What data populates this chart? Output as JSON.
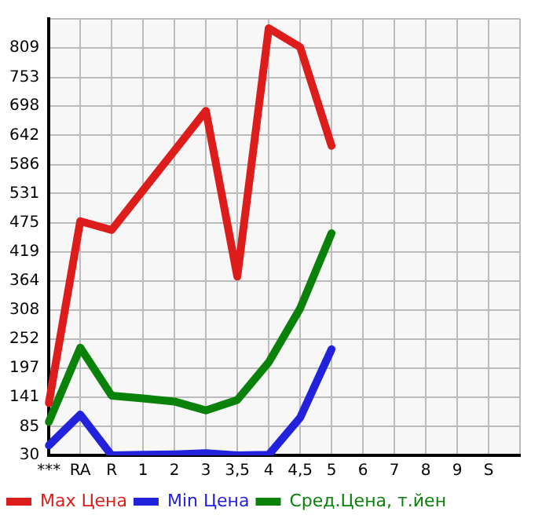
{
  "chart_data": {
    "type": "line",
    "categories": [
      "***",
      "RA",
      "R",
      "1",
      "2",
      "3",
      "3,5",
      "4",
      "4,5",
      "5",
      "6",
      "7",
      "8",
      "9",
      "S",
      null
    ],
    "series": [
      {
        "name": "Max Цена",
        "color": "#dd1c1c",
        "values": [
          130,
          478,
          461,
          537,
          613,
          689,
          372,
          847,
          811,
          622,
          null,
          null,
          null,
          null,
          null,
          null
        ]
      },
      {
        "name": "Min Цена",
        "color": "#2222dd",
        "values": [
          49,
          108,
          30,
          31,
          32,
          34,
          30,
          31,
          102,
          233,
          null,
          null,
          null,
          null,
          null,
          null
        ]
      },
      {
        "name": "Сред.Цена, т.йен",
        "color": "#0a820a",
        "values": [
          94,
          236,
          144,
          139,
          133,
          116,
          136,
          208,
          311,
          455,
          null,
          null,
          null,
          null,
          null,
          null
        ]
      }
    ],
    "ylim": [
      30,
      865
    ],
    "yticks": [
      30,
      85,
      141,
      197,
      252,
      308,
      364,
      419,
      475,
      531,
      586,
      642,
      698,
      753,
      809,
      {
        "value": 865,
        "label": null
      }
    ],
    "grid": true,
    "legend": "bottom",
    "marker": "none",
    "line_style": "solid"
  }
}
